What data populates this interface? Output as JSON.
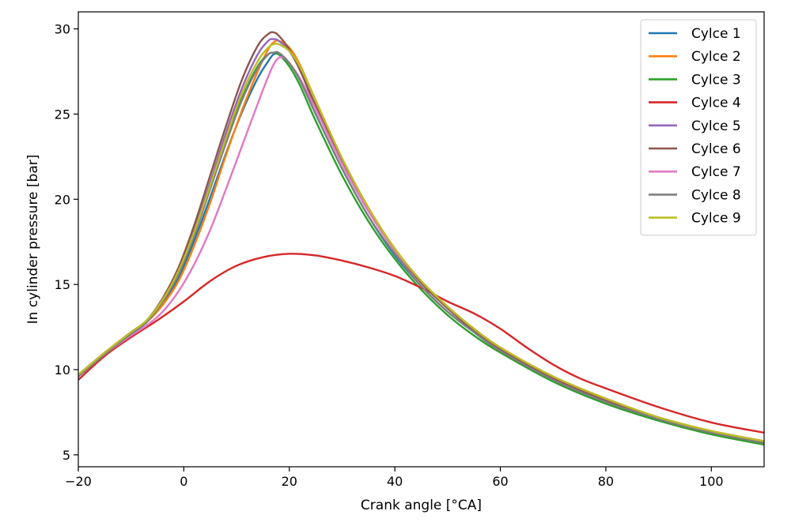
{
  "chart_data": {
    "type": "line",
    "title": "",
    "xlabel": "Crank angle [°CA]",
    "ylabel": "In cylinder pressure [bar]",
    "xlim": [
      -20,
      110
    ],
    "ylim": [
      4.3,
      31.0
    ],
    "xticks": [
      -20,
      0,
      20,
      40,
      60,
      80,
      100
    ],
    "yticks": [
      5,
      10,
      15,
      20,
      25,
      30
    ],
    "grid": false,
    "legend_position": "top-right",
    "series": [
      {
        "name": "Cylce 1",
        "color": "#1f77b4",
        "points": [
          [
            -20,
            9.6
          ],
          [
            -15,
            10.9
          ],
          [
            -10,
            12.1
          ],
          [
            -7,
            12.8
          ],
          [
            -4,
            13.9
          ],
          [
            -1,
            15.4
          ],
          [
            2,
            17.6
          ],
          [
            5,
            20.1
          ],
          [
            8,
            22.7
          ],
          [
            11,
            25.1
          ],
          [
            14,
            27.1
          ],
          [
            16,
            28.1
          ],
          [
            17,
            28.5
          ],
          [
            18,
            28.5
          ],
          [
            20,
            28.0
          ],
          [
            22,
            27.0
          ],
          [
            25,
            25.0
          ],
          [
            30,
            21.8
          ],
          [
            35,
            19.0
          ],
          [
            40,
            16.7
          ],
          [
            45,
            14.9
          ],
          [
            50,
            13.4
          ],
          [
            55,
            12.2
          ],
          [
            60,
            11.1
          ],
          [
            70,
            9.4
          ],
          [
            80,
            8.1
          ],
          [
            90,
            7.1
          ],
          [
            100,
            6.3
          ],
          [
            110,
            5.7
          ]
        ]
      },
      {
        "name": "Cylce 2",
        "color": "#ff7f0e",
        "points": [
          [
            -20,
            9.7
          ],
          [
            -15,
            11.0
          ],
          [
            -10,
            12.2
          ],
          [
            -7,
            12.8
          ],
          [
            -4,
            13.8
          ],
          [
            -1,
            15.2
          ],
          [
            2,
            17.3
          ],
          [
            5,
            19.8
          ],
          [
            8,
            22.6
          ],
          [
            11,
            25.2
          ],
          [
            14,
            27.5
          ],
          [
            16,
            28.8
          ],
          [
            17,
            29.2
          ],
          [
            18,
            29.3
          ],
          [
            20,
            28.9
          ],
          [
            22,
            27.9
          ],
          [
            25,
            25.8
          ],
          [
            30,
            22.4
          ],
          [
            35,
            19.5
          ],
          [
            40,
            17.1
          ],
          [
            45,
            15.2
          ],
          [
            50,
            13.7
          ],
          [
            55,
            12.4
          ],
          [
            60,
            11.3
          ],
          [
            70,
            9.6
          ],
          [
            80,
            8.3
          ],
          [
            90,
            7.2
          ],
          [
            100,
            6.4
          ],
          [
            110,
            5.8
          ]
        ]
      },
      {
        "name": "Cylce 3",
        "color": "#2ca02c",
        "points": [
          [
            -20,
            9.6
          ],
          [
            -15,
            10.9
          ],
          [
            -10,
            12.1
          ],
          [
            -7,
            12.8
          ],
          [
            -4,
            14.0
          ],
          [
            -1,
            15.7
          ],
          [
            2,
            18.0
          ],
          [
            5,
            20.7
          ],
          [
            8,
            23.4
          ],
          [
            11,
            25.9
          ],
          [
            14,
            27.8
          ],
          [
            16,
            28.5
          ],
          [
            17,
            28.6
          ],
          [
            18,
            28.5
          ],
          [
            20,
            27.8
          ],
          [
            22,
            26.7
          ],
          [
            25,
            24.6
          ],
          [
            30,
            21.4
          ],
          [
            35,
            18.7
          ],
          [
            40,
            16.5
          ],
          [
            45,
            14.7
          ],
          [
            50,
            13.2
          ],
          [
            55,
            12.0
          ],
          [
            60,
            11.0
          ],
          [
            70,
            9.3
          ],
          [
            80,
            8.0
          ],
          [
            90,
            7.0
          ],
          [
            100,
            6.2
          ],
          [
            110,
            5.6
          ]
        ]
      },
      {
        "name": "Cylce 4",
        "color": "#d62728",
        "points": [
          [
            -20,
            9.4
          ],
          [
            -15,
            10.8
          ],
          [
            -10,
            11.9
          ],
          [
            -5,
            12.9
          ],
          [
            0,
            14.0
          ],
          [
            5,
            15.2
          ],
          [
            10,
            16.1
          ],
          [
            15,
            16.6
          ],
          [
            20,
            16.8
          ],
          [
            25,
            16.7
          ],
          [
            30,
            16.4
          ],
          [
            35,
            16.0
          ],
          [
            40,
            15.5
          ],
          [
            45,
            14.8
          ],
          [
            50,
            14.0
          ],
          [
            55,
            13.3
          ],
          [
            60,
            12.4
          ],
          [
            65,
            11.3
          ],
          [
            70,
            10.3
          ],
          [
            75,
            9.5
          ],
          [
            80,
            8.9
          ],
          [
            90,
            7.8
          ],
          [
            100,
            6.9
          ],
          [
            110,
            6.3
          ]
        ]
      },
      {
        "name": "Cylce 5",
        "color": "#9467bd",
        "points": [
          [
            -20,
            9.6
          ],
          [
            -15,
            10.9
          ],
          [
            -10,
            12.1
          ],
          [
            -7,
            12.8
          ],
          [
            -4,
            14.1
          ],
          [
            -1,
            15.8
          ],
          [
            2,
            18.2
          ],
          [
            5,
            21.0
          ],
          [
            8,
            23.9
          ],
          [
            11,
            26.5
          ],
          [
            14,
            28.5
          ],
          [
            16,
            29.3
          ],
          [
            17,
            29.4
          ],
          [
            18,
            29.3
          ],
          [
            20,
            28.7
          ],
          [
            22,
            27.6
          ],
          [
            25,
            25.4
          ],
          [
            30,
            22.1
          ],
          [
            35,
            19.3
          ],
          [
            40,
            17.0
          ],
          [
            45,
            15.1
          ],
          [
            50,
            13.6
          ],
          [
            55,
            12.3
          ],
          [
            60,
            11.2
          ],
          [
            70,
            9.5
          ],
          [
            80,
            8.2
          ],
          [
            90,
            7.1
          ],
          [
            100,
            6.3
          ],
          [
            110,
            5.7
          ]
        ]
      },
      {
        "name": "Cylce 6",
        "color": "#8c564b",
        "points": [
          [
            -20,
            9.7
          ],
          [
            -15,
            11.0
          ],
          [
            -10,
            12.2
          ],
          [
            -7,
            12.9
          ],
          [
            -4,
            14.2
          ],
          [
            -1,
            16.0
          ],
          [
            2,
            18.5
          ],
          [
            5,
            21.4
          ],
          [
            8,
            24.3
          ],
          [
            11,
            27.0
          ],
          [
            14,
            29.0
          ],
          [
            16,
            29.7
          ],
          [
            17,
            29.8
          ],
          [
            18,
            29.6
          ],
          [
            20,
            28.8
          ],
          [
            22,
            27.6
          ],
          [
            25,
            25.5
          ],
          [
            30,
            22.2
          ],
          [
            35,
            19.4
          ],
          [
            40,
            17.0
          ],
          [
            45,
            15.1
          ],
          [
            50,
            13.6
          ],
          [
            55,
            12.3
          ],
          [
            60,
            11.2
          ],
          [
            70,
            9.5
          ],
          [
            80,
            8.2
          ],
          [
            90,
            7.1
          ],
          [
            100,
            6.3
          ],
          [
            110,
            5.7
          ]
        ]
      },
      {
        "name": "Cylce 7",
        "color": "#e377c2",
        "points": [
          [
            -20,
            9.6
          ],
          [
            -15,
            10.9
          ],
          [
            -10,
            12.0
          ],
          [
            -7,
            12.6
          ],
          [
            -4,
            13.4
          ],
          [
            -1,
            14.6
          ],
          [
            2,
            16.2
          ],
          [
            5,
            18.2
          ],
          [
            8,
            20.6
          ],
          [
            11,
            23.1
          ],
          [
            14,
            25.6
          ],
          [
            16,
            27.2
          ],
          [
            17,
            27.9
          ],
          [
            18,
            28.3
          ],
          [
            19,
            28.3
          ],
          [
            20,
            28.0
          ],
          [
            22,
            27.1
          ],
          [
            25,
            25.3
          ],
          [
            30,
            22.1
          ],
          [
            35,
            19.3
          ],
          [
            40,
            17.0
          ],
          [
            45,
            15.2
          ],
          [
            50,
            13.7
          ],
          [
            55,
            12.4
          ],
          [
            60,
            11.3
          ],
          [
            70,
            9.6
          ],
          [
            80,
            8.3
          ],
          [
            90,
            7.2
          ],
          [
            100,
            6.4
          ],
          [
            110,
            5.8
          ]
        ]
      },
      {
        "name": "Cylce 8",
        "color": "#7f7f7f",
        "points": [
          [
            -20,
            9.6
          ],
          [
            -15,
            10.9
          ],
          [
            -10,
            12.1
          ],
          [
            -7,
            12.8
          ],
          [
            -4,
            14.0
          ],
          [
            -1,
            15.6
          ],
          [
            2,
            17.9
          ],
          [
            5,
            20.6
          ],
          [
            8,
            23.3
          ],
          [
            11,
            25.8
          ],
          [
            14,
            27.7
          ],
          [
            16,
            28.5
          ],
          [
            17,
            28.6
          ],
          [
            18,
            28.6
          ],
          [
            20,
            28.0
          ],
          [
            22,
            27.0
          ],
          [
            25,
            25.0
          ],
          [
            30,
            21.8
          ],
          [
            35,
            19.0
          ],
          [
            40,
            16.8
          ],
          [
            45,
            14.9
          ],
          [
            50,
            13.4
          ],
          [
            55,
            12.2
          ],
          [
            60,
            11.1
          ],
          [
            70,
            9.4
          ],
          [
            80,
            8.1
          ],
          [
            90,
            7.1
          ],
          [
            100,
            6.3
          ],
          [
            110,
            5.7
          ]
        ]
      },
      {
        "name": "Cylce 9",
        "color": "#bcbd22",
        "points": [
          [
            -20,
            9.7
          ],
          [
            -15,
            11.0
          ],
          [
            -10,
            12.2
          ],
          [
            -7,
            12.9
          ],
          [
            -4,
            14.1
          ],
          [
            -1,
            15.8
          ],
          [
            2,
            18.1
          ],
          [
            5,
            20.8
          ],
          [
            8,
            23.6
          ],
          [
            11,
            26.2
          ],
          [
            14,
            28.1
          ],
          [
            16,
            28.9
          ],
          [
            17,
            29.1
          ],
          [
            18,
            29.1
          ],
          [
            20,
            28.7
          ],
          [
            22,
            27.8
          ],
          [
            25,
            25.8
          ],
          [
            30,
            22.4
          ],
          [
            35,
            19.5
          ],
          [
            40,
            17.1
          ],
          [
            45,
            15.2
          ],
          [
            50,
            13.7
          ],
          [
            55,
            12.4
          ],
          [
            60,
            11.3
          ],
          [
            70,
            9.6
          ],
          [
            80,
            8.3
          ],
          [
            90,
            7.2
          ],
          [
            100,
            6.4
          ],
          [
            110,
            5.8
          ]
        ]
      }
    ]
  }
}
